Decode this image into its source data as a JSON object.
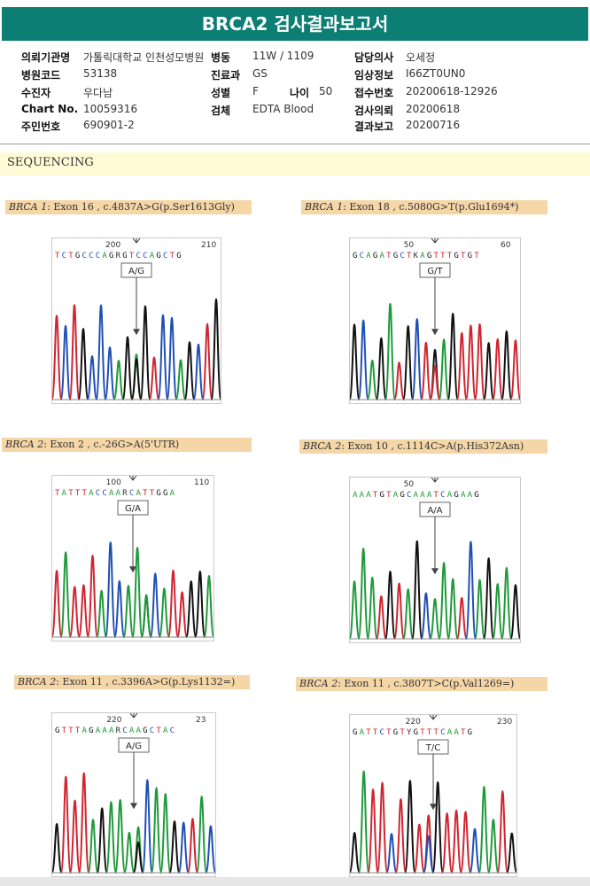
{
  "title": "BRCA2 검사결과보고서",
  "info": {
    "institution_label": "의뢰기관명",
    "institution_value": "가톨릭대학교 인천성모병원",
    "ward_label": "병동",
    "ward_value": "11W / 1109",
    "doctor_label": "담당의사",
    "doctor_value": "오세정",
    "hospital_code_label": "병원코드",
    "hospital_code_value": "53138",
    "dept_label": "진료과",
    "dept_value": "GS",
    "clinical_label": "임상정보",
    "clinical_value": "I66ZT0UN0",
    "recipient_label": "수진자",
    "recipient_value": "우다남",
    "sex_label": "성별",
    "sex_value": "F",
    "age_label": "나이",
    "age_value": "50",
    "receipt_label": "접수번호",
    "receipt_value": "20200618-12926",
    "chart_label": "Chart No.",
    "chart_value": "10059316",
    "specimen_label": "검체",
    "specimen_value": "EDTA Blood",
    "request_label": "검사의뢰",
    "request_value": "20200618",
    "ssn_label": "주민번호",
    "ssn_value": "690901-2",
    "report_label": "결과보고",
    "report_value": "20200716"
  },
  "section_title": "SEQUENCING",
  "panels": [
    {
      "gene": "BRCA 1",
      "desc": ": Exon 16 , c.4837A>G(p.Ser1613Gly)",
      "seq": "TCTGCCCAGRGTCCAGCTG",
      "pos_a": "200",
      "pos_b": "210",
      "call": "A/G"
    },
    {
      "gene": "BRCA 1",
      "desc": ": Exon 18 , c.5080G>T(p.Glu1694*)",
      "seq": "GCAGATGCTKAGTTTGTGT",
      "pos_a": "50",
      "pos_b": "60",
      "call": "G/T"
    },
    {
      "gene": "BRCA 2",
      "desc": ": Exon 2 , c.-26G>A(5'UTR)",
      "seq": "TATTTACCAARCATTGGA",
      "pos_a": "100",
      "pos_b": "110",
      "call": "G/A"
    },
    {
      "gene": "BRCA 2",
      "desc": ": Exon 10 , c.1114C>A(p.His372Asn)",
      "seq": "AAATGTAGCAAATCAGAAG",
      "pos_a": "50",
      "pos_b": "",
      "call": "A/A"
    },
    {
      "gene": "BRCA 2",
      "desc": ": Exon 11 , c.3396A>G(p.Lys1132=)",
      "seq": "GTTTAGAAARCAAGCTAC",
      "pos_a": "220",
      "pos_b": "23",
      "call": "A/G"
    },
    {
      "gene": "BRCA 2",
      "desc": ": Exon 11 , c.3807T>C(p.Val1269=)",
      "seq": "GATTCTGTYGTTTCAATG",
      "pos_a": "220",
      "pos_b": "230",
      "call": "T/C"
    }
  ],
  "colors": {
    "header": "#0c7e73",
    "A": "#1f9a3a",
    "C": "#1f4fb5",
    "G": "#111111",
    "T": "#d02530",
    "variant_bg": "#f5d6a6",
    "section_bg": "#fffbd7"
  }
}
